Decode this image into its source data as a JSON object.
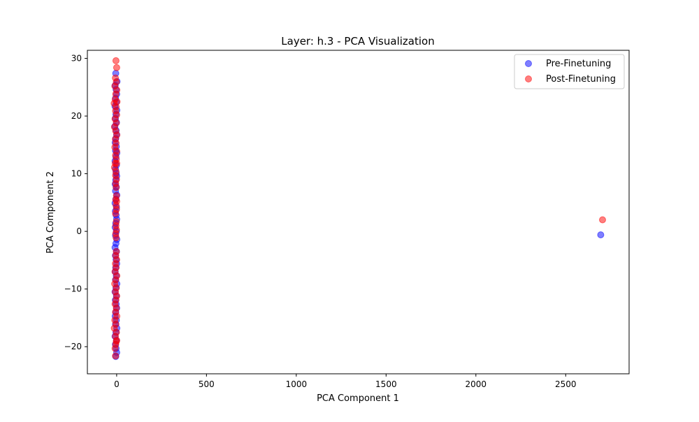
{
  "chart_data": {
    "type": "scatter",
    "title": "Layer: h.3 - PCA Visualization",
    "xlabel": "PCA Component 1",
    "ylabel": "PCA Component 2",
    "xlim": [
      -163,
      2853
    ],
    "ylim": [
      -24.7,
      31.4
    ],
    "xticks": [
      0,
      500,
      1000,
      1500,
      2000,
      2500
    ],
    "yticks": [
      -20,
      -10,
      0,
      10,
      20,
      30
    ],
    "grid": false,
    "legend_position": "top-right",
    "series": [
      {
        "name": "Pre-Finetuning",
        "color": "#0000ff",
        "points": [
          [
            -5,
            27.4
          ],
          [
            2,
            26.0
          ],
          [
            -8,
            25.3
          ],
          [
            -3,
            24.6
          ],
          [
            0,
            23.8
          ],
          [
            -6,
            23.1
          ],
          [
            -2,
            22.4
          ],
          [
            -9,
            21.7
          ],
          [
            1,
            21.0
          ],
          [
            -4,
            20.3
          ],
          [
            -7,
            19.6
          ],
          [
            -1,
            18.9
          ],
          [
            -10,
            18.2
          ],
          [
            -3,
            17.5
          ],
          [
            0,
            16.8
          ],
          [
            -5,
            16.1
          ],
          [
            -8,
            15.4
          ],
          [
            -2,
            14.7
          ],
          [
            -6,
            14.0
          ],
          [
            1,
            13.6
          ],
          [
            -4,
            12.9
          ],
          [
            -9,
            12.2
          ],
          [
            -1,
            11.5
          ],
          [
            -7,
            10.8
          ],
          [
            -3,
            10.1
          ],
          [
            0,
            9.6
          ],
          [
            -5,
            8.9
          ],
          [
            -8,
            8.2
          ],
          [
            -2,
            7.7
          ],
          [
            -6,
            7.0
          ],
          [
            1,
            6.3
          ],
          [
            -4,
            5.6
          ],
          [
            -9,
            4.9
          ],
          [
            -1,
            4.2
          ],
          [
            -7,
            3.5
          ],
          [
            -3,
            2.8
          ],
          [
            0,
            2.1
          ],
          [
            -5,
            1.4
          ],
          [
            -8,
            0.7
          ],
          [
            -2,
            0.0
          ],
          [
            -6,
            -0.7
          ],
          [
            1,
            -1.4
          ],
          [
            -4,
            -2.1
          ],
          [
            -9,
            -2.8
          ],
          [
            -1,
            -3.5
          ],
          [
            -7,
            -4.2
          ],
          [
            -3,
            -4.9
          ],
          [
            0,
            -5.6
          ],
          [
            -5,
            -6.3
          ],
          [
            -8,
            -7.0
          ],
          [
            -2,
            -7.7
          ],
          [
            -6,
            -8.4
          ],
          [
            1,
            -9.1
          ],
          [
            -4,
            -9.8
          ],
          [
            -9,
            -10.5
          ],
          [
            -1,
            -11.2
          ],
          [
            -7,
            -11.9
          ],
          [
            -3,
            -12.6
          ],
          [
            0,
            -13.3
          ],
          [
            -5,
            -14.0
          ],
          [
            -8,
            -14.7
          ],
          [
            -2,
            -15.4
          ],
          [
            -6,
            -16.1
          ],
          [
            1,
            -16.8
          ],
          [
            -4,
            -17.5
          ],
          [
            -9,
            -18.2
          ],
          [
            -1,
            -18.9
          ],
          [
            -7,
            -19.6
          ],
          [
            -3,
            -20.3
          ],
          [
            0,
            -21.0
          ],
          [
            -5,
            -21.7
          ],
          [
            2695,
            -0.6
          ]
        ]
      },
      {
        "name": "Post-Finetuning",
        "color": "#ff0000",
        "points": [
          [
            -4,
            29.6
          ],
          [
            0,
            28.4
          ],
          [
            -7,
            26.6
          ],
          [
            -2,
            25.9
          ],
          [
            -10,
            25.2
          ],
          [
            1,
            24.5
          ],
          [
            -5,
            23.8
          ],
          [
            -8,
            22.9
          ],
          [
            -14,
            22.2
          ],
          [
            2,
            22.5
          ],
          [
            -3,
            21.6
          ],
          [
            -6,
            20.9
          ],
          [
            0,
            20.2
          ],
          [
            -9,
            19.5
          ],
          [
            -2,
            18.8
          ],
          [
            -12,
            18.1
          ],
          [
            -5,
            17.4
          ],
          [
            1,
            16.7
          ],
          [
            -7,
            16.0
          ],
          [
            -3,
            15.3
          ],
          [
            -10,
            14.6
          ],
          [
            0,
            13.9
          ],
          [
            -6,
            13.2
          ],
          [
            -2,
            12.5
          ],
          [
            -8,
            11.8
          ],
          [
            -12,
            11.1
          ],
          [
            0,
            11.8
          ],
          [
            -4,
            10.4
          ],
          [
            -6,
            9.7
          ],
          [
            -1,
            9.0
          ],
          [
            -5,
            8.3
          ],
          [
            -3,
            7.6
          ],
          [
            -1,
            6.2
          ],
          [
            -5,
            5.5
          ],
          [
            0,
            5.2
          ],
          [
            -3,
            4.5
          ],
          [
            -1,
            3.8
          ],
          [
            -6,
            3.1
          ],
          [
            -2,
            1.7
          ],
          [
            -4,
            1.0
          ],
          [
            -1,
            0.3
          ],
          [
            -5,
            -0.4
          ],
          [
            -3,
            -1.1
          ],
          [
            -2,
            -3.5
          ],
          [
            -5,
            -4.2
          ],
          [
            0,
            -4.9
          ],
          [
            -7,
            -5.6
          ],
          [
            -3,
            -6.3
          ],
          [
            -9,
            -7.0
          ],
          [
            1,
            -7.7
          ],
          [
            -5,
            -8.4
          ],
          [
            -11,
            -9.1
          ],
          [
            -2,
            -9.8
          ],
          [
            -7,
            -10.5
          ],
          [
            0,
            -11.2
          ],
          [
            -4,
            -11.9
          ],
          [
            -9,
            -12.6
          ],
          [
            -2,
            -13.3
          ],
          [
            -6,
            -14.0
          ],
          [
            1,
            -14.7
          ],
          [
            -10,
            -15.4
          ],
          [
            -4,
            -16.1
          ],
          [
            -13,
            -16.8
          ],
          [
            -1,
            -17.5
          ],
          [
            -7,
            -18.2
          ],
          [
            0,
            -18.9
          ],
          [
            -5,
            -19.6
          ],
          [
            -9,
            -20.3
          ],
          [
            -2,
            -19.1
          ],
          [
            -6,
            -21.6
          ],
          [
            2705,
            2.0
          ]
        ]
      }
    ]
  }
}
